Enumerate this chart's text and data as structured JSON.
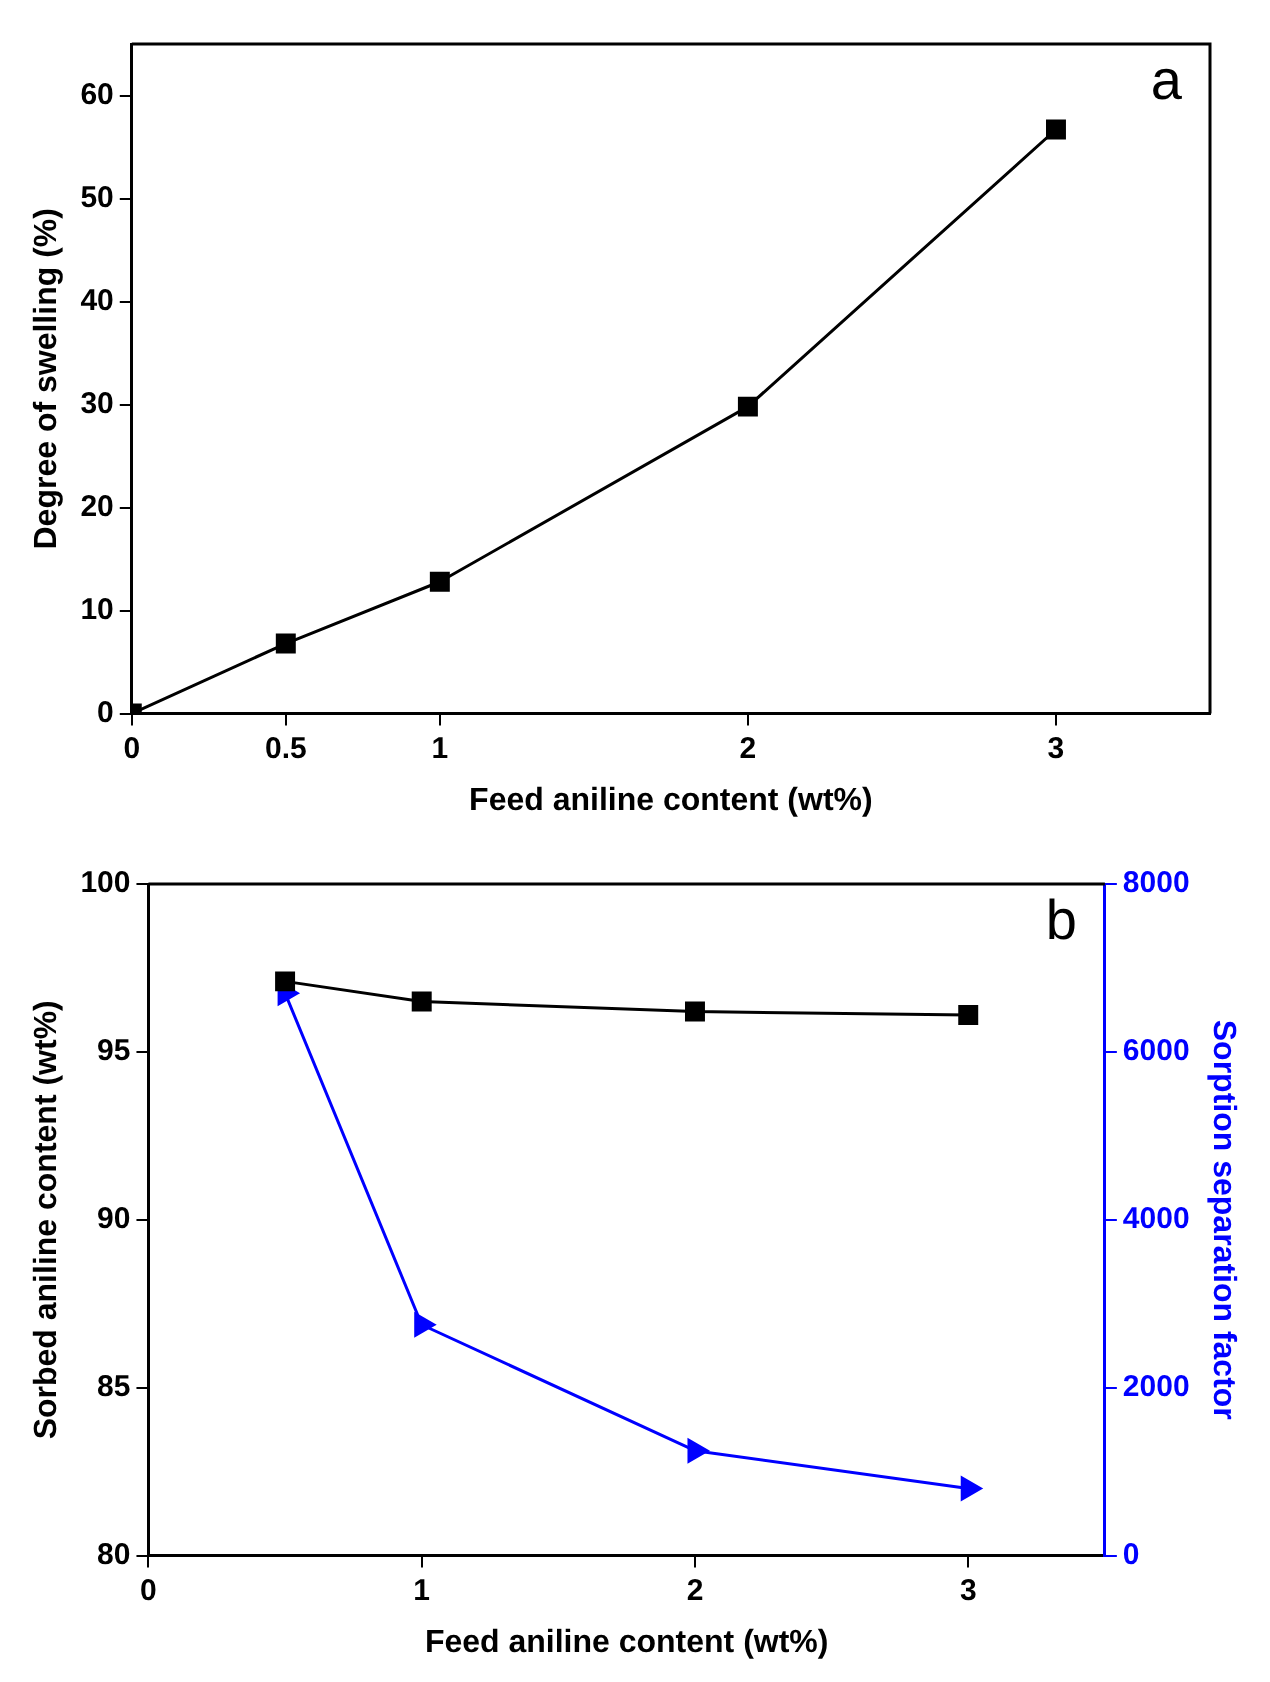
{
  "chart_data": [
    {
      "type": "line",
      "xlabel": "Feed aniline content (wt%)",
      "ylabel": "Degree of swelling (%)",
      "annotations": [
        "a"
      ],
      "xlim": [
        0,
        3.5
      ],
      "xticks": [
        0,
        0.5,
        1,
        2,
        3
      ],
      "ylim": [
        0,
        65
      ],
      "yticks": [
        0,
        10,
        20,
        30,
        40,
        50,
        60
      ],
      "grid": false,
      "legend": false,
      "marker": "square",
      "line_style": "solid",
      "x": [
        0,
        0.5,
        1,
        2,
        3
      ],
      "series": [
        {
          "color": "#000000",
          "values": [
            0,
            6.8,
            12.8,
            29.8,
            56.7
          ]
        }
      ]
    },
    {
      "type": "line",
      "xlabel": "Feed aniline content (wt%)",
      "ylabel": "Sorbed aniline content (wt%)",
      "y2label": "Sorption separation factor",
      "annotations": [
        "b"
      ],
      "xlim": [
        0,
        3.5
      ],
      "xticks": [
        0,
        1,
        2,
        3
      ],
      "ylim": [
        80,
        100
      ],
      "yticks": [
        80,
        85,
        90,
        95,
        100
      ],
      "y2lim": [
        0,
        8000
      ],
      "y2ticks": [
        0,
        2000,
        4000,
        6000,
        8000
      ],
      "grid": false,
      "legend": false,
      "line_style": "solid",
      "x": [
        0.5,
        1,
        2,
        3
      ],
      "series": [
        {
          "color": "#000000",
          "marker": "square",
          "values": [
            97.1,
            96.5,
            96.2,
            96.1
          ]
        },
        {
          "color": "#0000ff",
          "marker": "triangle",
          "axis": "y2",
          "values": [
            6700,
            2750,
            1250,
            800
          ]
        }
      ]
    }
  ]
}
